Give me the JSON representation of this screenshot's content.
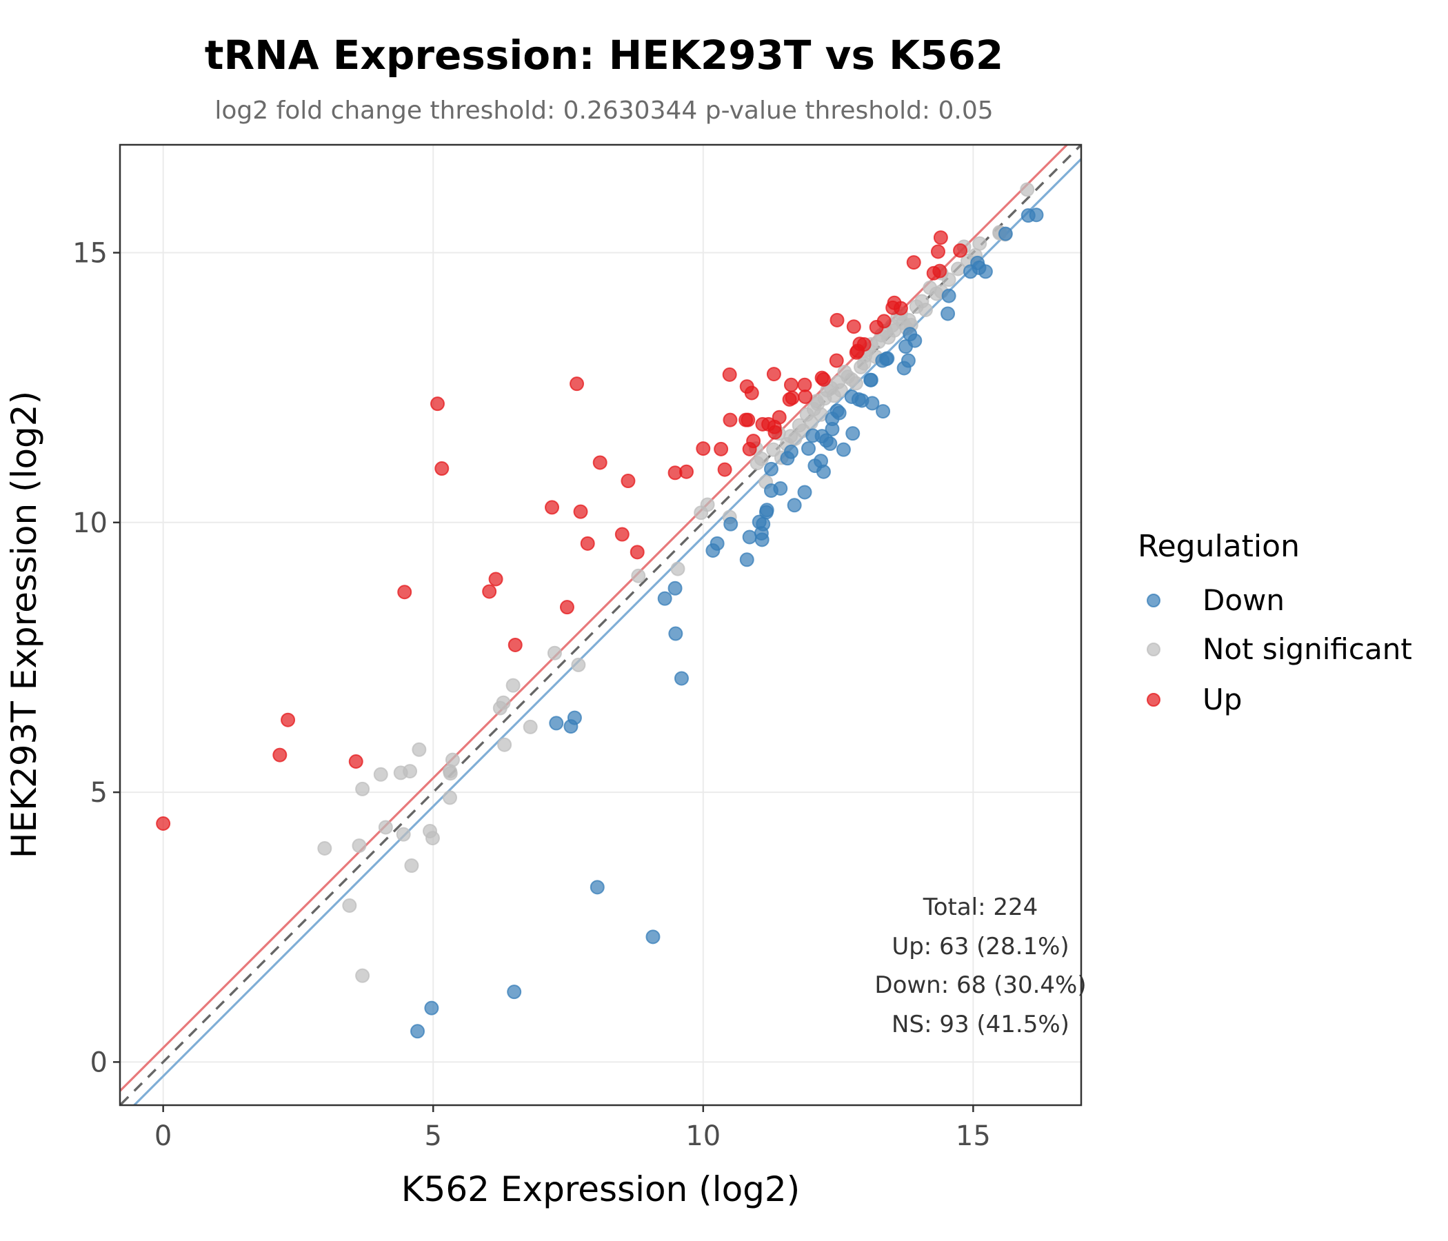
{
  "chart_data": {
    "type": "scatter",
    "title": "tRNA Expression: HEK293T vs K562",
    "subtitle": "log2 fold change threshold: 0.2630344   p-value threshold: 0.05",
    "xlabel": "K562 Expression (log2)",
    "ylabel": "HEK293T Expression (log2)",
    "xlim": [
      -0.8,
      17.0
    ],
    "ylim": [
      -0.8,
      17.0
    ],
    "xticks": [
      0,
      5,
      10,
      15
    ],
    "yticks": [
      0,
      5,
      10,
      15
    ],
    "xtick_labels": [
      "0",
      "5",
      "10",
      "15"
    ],
    "ytick_labels": [
      "0",
      "5",
      "10",
      "15"
    ],
    "grid": true,
    "reference_lines": [
      {
        "name": "identity",
        "intercept": 0,
        "slope": 1,
        "style": "dashed",
        "color": "#666666"
      },
      {
        "name": "up-threshold",
        "intercept": 0.2630344,
        "slope": 1,
        "style": "solid",
        "color": "#E8797B"
      },
      {
        "name": "down-threshold",
        "intercept": -0.2630344,
        "slope": 1,
        "style": "solid",
        "color": "#7FAED6"
      }
    ],
    "legend": {
      "title": "Regulation",
      "position": "right",
      "entries": [
        {
          "label": "Down",
          "color": "#377EB8"
        },
        {
          "label": "Not significant",
          "color": "#BDBDBD"
        },
        {
          "label": "Up",
          "color": "#E41A1C"
        }
      ]
    },
    "annotation": {
      "position": "bottom-right",
      "lines": [
        "Total: 224",
        "Up: 63 (28.1%)",
        "Down: 68 (30.4%)",
        "NS: 93 (41.5%)"
      ]
    },
    "series": [
      {
        "name": "Up",
        "color": "#E41A1C",
        "points": [
          [
            0.0,
            4.42
          ],
          [
            2.16,
            5.69
          ],
          [
            2.31,
            6.34
          ],
          [
            3.57,
            5.57
          ],
          [
            4.47,
            8.71
          ],
          [
            5.08,
            12.2
          ],
          [
            5.16,
            11.0
          ],
          [
            6.04,
            8.72
          ],
          [
            6.16,
            8.95
          ],
          [
            6.52,
            7.73
          ],
          [
            7.2,
            10.28
          ],
          [
            7.48,
            8.43
          ],
          [
            7.66,
            12.57
          ],
          [
            7.73,
            10.2
          ],
          [
            7.86,
            9.61
          ],
          [
            8.09,
            11.11
          ],
          [
            8.5,
            9.78
          ],
          [
            8.61,
            10.77
          ],
          [
            8.78,
            9.45
          ],
          [
            9.48,
            10.92
          ],
          [
            9.69,
            10.94
          ],
          [
            10.0,
            11.37
          ],
          [
            10.33,
            11.36
          ],
          [
            10.4,
            10.98
          ],
          [
            10.49,
            12.74
          ],
          [
            10.5,
            11.9
          ],
          [
            10.79,
            11.9
          ],
          [
            10.83,
            11.9
          ],
          [
            10.81,
            12.52
          ],
          [
            10.9,
            12.4
          ],
          [
            10.86,
            11.36
          ],
          [
            10.93,
            11.51
          ],
          [
            11.1,
            11.82
          ],
          [
            11.21,
            11.82
          ],
          [
            11.32,
            11.77
          ],
          [
            11.33,
            11.67
          ],
          [
            11.31,
            12.75
          ],
          [
            11.41,
            11.95
          ],
          [
            11.6,
            12.28
          ],
          [
            11.65,
            12.31
          ],
          [
            11.63,
            12.55
          ],
          [
            11.88,
            12.55
          ],
          [
            11.89,
            12.33
          ],
          [
            12.2,
            12.68
          ],
          [
            12.23,
            12.65
          ],
          [
            12.47,
            13.0
          ],
          [
            12.48,
            13.75
          ],
          [
            12.79,
            13.63
          ],
          [
            12.84,
            13.15
          ],
          [
            12.9,
            13.31
          ],
          [
            12.98,
            13.3
          ],
          [
            13.21,
            13.62
          ],
          [
            13.35,
            13.73
          ],
          [
            13.51,
            13.98
          ],
          [
            13.54,
            14.07
          ],
          [
            13.66,
            13.97
          ],
          [
            13.9,
            14.82
          ],
          [
            14.27,
            14.62
          ],
          [
            14.35,
            15.02
          ],
          [
            14.38,
            14.66
          ],
          [
            14.4,
            15.28
          ],
          [
            14.76,
            15.04
          ],
          [
            12.86,
            13.18
          ]
        ]
      },
      {
        "name": "Down",
        "color": "#377EB8",
        "points": [
          [
            4.71,
            0.57
          ],
          [
            4.97,
            1.0
          ],
          [
            6.5,
            1.3
          ],
          [
            8.04,
            3.24
          ],
          [
            9.07,
            2.32
          ],
          [
            7.28,
            6.28
          ],
          [
            7.55,
            6.22
          ],
          [
            7.62,
            6.38
          ],
          [
            9.29,
            8.59
          ],
          [
            9.48,
            8.78
          ],
          [
            9.49,
            7.94
          ],
          [
            9.6,
            7.11
          ],
          [
            10.18,
            9.48
          ],
          [
            10.26,
            9.61
          ],
          [
            10.51,
            9.97
          ],
          [
            10.81,
            9.31
          ],
          [
            10.86,
            9.73
          ],
          [
            11.04,
            10.01
          ],
          [
            11.08,
            9.8
          ],
          [
            11.09,
            9.68
          ],
          [
            11.11,
            9.97
          ],
          [
            11.17,
            10.19
          ],
          [
            11.18,
            10.23
          ],
          [
            11.26,
            10.59
          ],
          [
            11.43,
            10.63
          ],
          [
            11.26,
            10.99
          ],
          [
            11.69,
            10.32
          ],
          [
            11.88,
            10.56
          ],
          [
            11.56,
            11.19
          ],
          [
            11.63,
            11.31
          ],
          [
            11.95,
            11.37
          ],
          [
            12.07,
            11.05
          ],
          [
            12.18,
            11.14
          ],
          [
            12.23,
            10.94
          ],
          [
            12.03,
            11.61
          ],
          [
            12.2,
            11.6
          ],
          [
            12.28,
            11.52
          ],
          [
            12.35,
            11.46
          ],
          [
            12.39,
            11.73
          ],
          [
            12.39,
            11.92
          ],
          [
            12.48,
            12.07
          ],
          [
            12.52,
            12.03
          ],
          [
            12.6,
            11.35
          ],
          [
            12.77,
            11.65
          ],
          [
            12.75,
            12.33
          ],
          [
            12.88,
            12.28
          ],
          [
            12.94,
            12.26
          ],
          [
            13.1,
            12.64
          ],
          [
            13.13,
            12.21
          ],
          [
            13.33,
            12.06
          ],
          [
            13.32,
            13.0
          ],
          [
            13.39,
            13.03
          ],
          [
            13.41,
            13.04
          ],
          [
            13.72,
            12.86
          ],
          [
            13.75,
            13.26
          ],
          [
            13.8,
            13.0
          ],
          [
            13.83,
            13.49
          ],
          [
            13.92,
            13.37
          ],
          [
            14.53,
            13.87
          ],
          [
            14.55,
            14.2
          ],
          [
            14.95,
            14.65
          ],
          [
            15.08,
            14.81
          ],
          [
            15.11,
            14.72
          ],
          [
            15.23,
            14.65
          ],
          [
            15.6,
            15.35
          ],
          [
            16.02,
            15.69
          ],
          [
            16.17,
            15.7
          ],
          [
            13.11,
            12.64
          ]
        ]
      },
      {
        "name": "Not significant",
        "color": "#BDBDBD",
        "points": [
          [
            2.99,
            3.96
          ],
          [
            3.45,
            2.9
          ],
          [
            3.63,
            4.01
          ],
          [
            3.69,
            1.6
          ],
          [
            3.69,
            5.06
          ],
          [
            4.03,
            5.33
          ],
          [
            4.12,
            4.35
          ],
          [
            4.4,
            5.36
          ],
          [
            4.45,
            4.22
          ],
          [
            4.57,
            5.39
          ],
          [
            4.6,
            3.64
          ],
          [
            4.74,
            5.79
          ],
          [
            4.94,
            4.28
          ],
          [
            4.99,
            4.15
          ],
          [
            5.31,
            4.9
          ],
          [
            5.31,
            5.39
          ],
          [
            5.32,
            5.35
          ],
          [
            5.36,
            5.6
          ],
          [
            6.24,
            6.56
          ],
          [
            6.3,
            6.66
          ],
          [
            6.32,
            5.88
          ],
          [
            6.48,
            6.98
          ],
          [
            6.8,
            6.21
          ],
          [
            7.25,
            7.58
          ],
          [
            7.69,
            7.36
          ],
          [
            8.8,
            9.01
          ],
          [
            9.53,
            9.14
          ],
          [
            9.96,
            10.18
          ],
          [
            10.08,
            10.33
          ],
          [
            10.49,
            10.1
          ],
          [
            10.98,
            11.37
          ],
          [
            11.0,
            11.1
          ],
          [
            11.08,
            11.18
          ],
          [
            11.16,
            10.75
          ],
          [
            11.3,
            11.35
          ],
          [
            11.45,
            11.2
          ],
          [
            11.55,
            11.45
          ],
          [
            11.62,
            11.6
          ],
          [
            11.7,
            11.55
          ],
          [
            11.78,
            11.8
          ],
          [
            11.85,
            11.7
          ],
          [
            11.92,
            12.0
          ],
          [
            12.0,
            11.85
          ],
          [
            12.05,
            12.1
          ],
          [
            12.12,
            12.2
          ],
          [
            12.18,
            12.0
          ],
          [
            12.25,
            12.3
          ],
          [
            12.3,
            12.45
          ],
          [
            12.37,
            12.49
          ],
          [
            12.42,
            12.35
          ],
          [
            12.5,
            12.6
          ],
          [
            12.55,
            12.45
          ],
          [
            12.62,
            12.79
          ],
          [
            12.68,
            12.7
          ],
          [
            12.75,
            12.65
          ],
          [
            12.83,
            12.58
          ],
          [
            12.92,
            12.88
          ],
          [
            12.98,
            12.95
          ],
          [
            13.0,
            13.09
          ],
          [
            13.05,
            13.2
          ],
          [
            13.11,
            13.3
          ],
          [
            13.2,
            13.07
          ],
          [
            13.25,
            13.35
          ],
          [
            13.3,
            13.47
          ],
          [
            13.38,
            13.55
          ],
          [
            13.43,
            13.43
          ],
          [
            13.5,
            13.65
          ],
          [
            13.54,
            13.56
          ],
          [
            13.6,
            13.8
          ],
          [
            13.66,
            13.87
          ],
          [
            13.7,
            13.7
          ],
          [
            13.77,
            13.6
          ],
          [
            13.81,
            13.75
          ],
          [
            13.85,
            13.66
          ],
          [
            13.95,
            14.0
          ],
          [
            14.05,
            14.1
          ],
          [
            14.12,
            13.94
          ],
          [
            14.2,
            14.35
          ],
          [
            14.32,
            14.24
          ],
          [
            14.41,
            14.28
          ],
          [
            14.41,
            14.62
          ],
          [
            14.55,
            14.5
          ],
          [
            14.72,
            14.7
          ],
          [
            14.83,
            15.11
          ],
          [
            15.04,
            14.95
          ],
          [
            15.12,
            15.17
          ],
          [
            15.49,
            15.36
          ],
          [
            15.49,
            15.38
          ],
          [
            15.59,
            15.34
          ],
          [
            16.0,
            16.17
          ],
          [
            14.9,
            14.85
          ],
          [
            12.1,
            12.25
          ],
          [
            11.4,
            11.65
          ]
        ]
      }
    ]
  }
}
